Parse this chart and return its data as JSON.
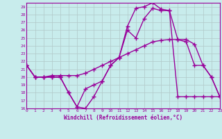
{
  "xlabel": "Windchill (Refroidissement éolien,°C)",
  "background_color": "#c8ecec",
  "grid_color": "#b0c8c8",
  "line_color": "#990099",
  "x": [
    0,
    1,
    2,
    3,
    4,
    5,
    6,
    7,
    8,
    9,
    10,
    11,
    12,
    13,
    14,
    15,
    16,
    17,
    18,
    19,
    20,
    21,
    22,
    23
  ],
  "line1": [
    21.5,
    20.0,
    20.0,
    20.2,
    20.2,
    20.2,
    20.2,
    20.5,
    21.0,
    21.5,
    22.0,
    22.5,
    23.0,
    23.5,
    24.0,
    24.5,
    24.7,
    24.8,
    24.8,
    24.8,
    24.2,
    21.5,
    20.0,
    17.5
  ],
  "line2": [
    21.5,
    20.0,
    20.0,
    20.0,
    20.0,
    18.0,
    16.2,
    16.0,
    17.5,
    19.5,
    21.5,
    22.5,
    26.0,
    25.0,
    27.5,
    28.8,
    28.5,
    28.5,
    17.5,
    17.5,
    17.5,
    17.5,
    17.5,
    17.5
  ],
  "line3": [
    21.5,
    20.0,
    20.0,
    20.0,
    20.0,
    18.0,
    16.2,
    18.5,
    19.0,
    19.5,
    21.5,
    22.5,
    26.5,
    28.8,
    29.0,
    29.5,
    28.7,
    28.5,
    24.8,
    24.5,
    21.5,
    21.5,
    20.0,
    17.5
  ],
  "xlim": [
    0,
    23
  ],
  "ylim": [
    16,
    29.5
  ],
  "xticks": [
    0,
    1,
    2,
    3,
    4,
    5,
    6,
    7,
    8,
    9,
    10,
    11,
    12,
    13,
    14,
    15,
    16,
    17,
    18,
    19,
    20,
    21,
    22,
    23
  ],
  "yticks": [
    16,
    17,
    18,
    19,
    20,
    21,
    22,
    23,
    24,
    25,
    26,
    27,
    28,
    29
  ]
}
